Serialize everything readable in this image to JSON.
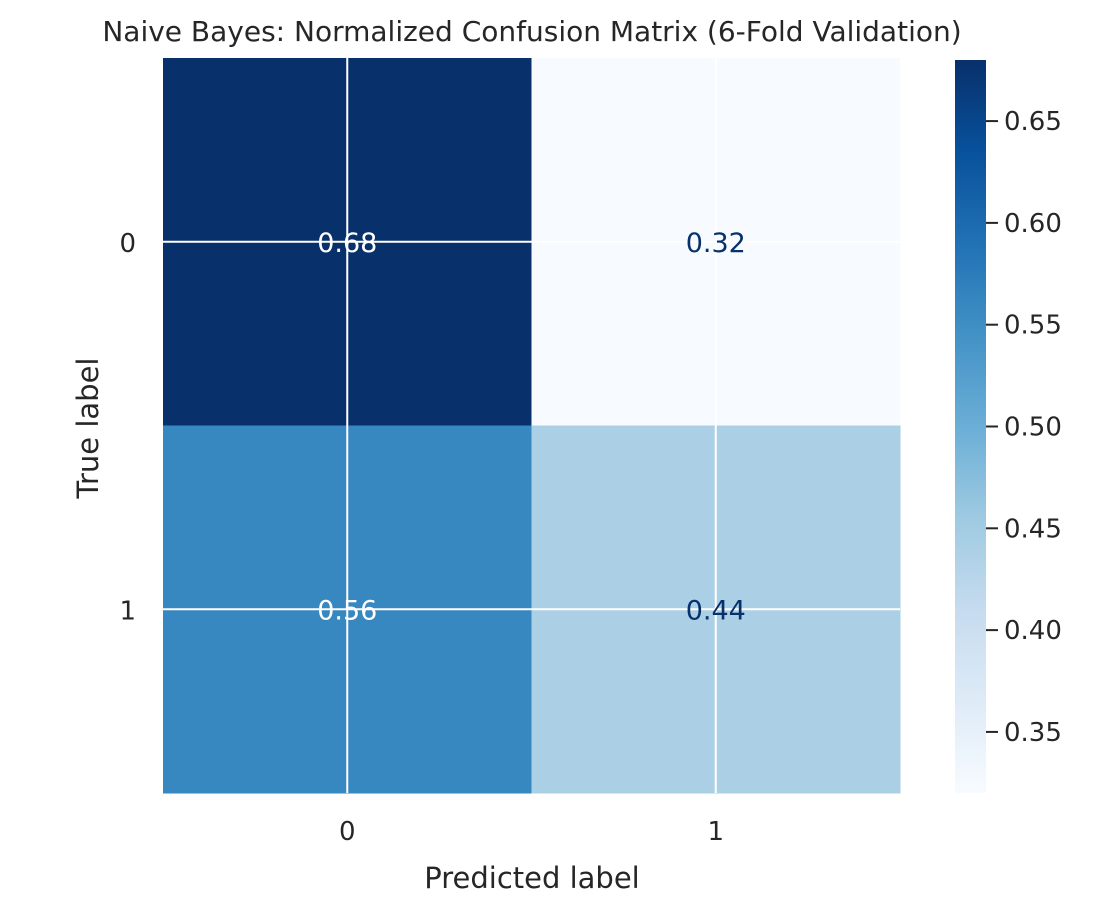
{
  "chart_data": {
    "type": "heatmap",
    "title": "Naive Bayes: Normalized Confusion Matrix (6-Fold Validation)",
    "xlabel": "Predicted label",
    "ylabel": "True label",
    "x_categories": [
      "0",
      "1"
    ],
    "y_categories": [
      "0",
      "1"
    ],
    "values": [
      [
        0.68,
        0.32
      ],
      [
        0.56,
        0.44
      ]
    ],
    "cell_labels": [
      [
        "0.68",
        "0.32"
      ],
      [
        "0.56",
        "0.44"
      ]
    ],
    "colormap": "Blues",
    "colorbar": {
      "range": [
        0.32,
        0.68
      ],
      "ticks": [
        0.35,
        0.4,
        0.45,
        0.5,
        0.55,
        0.6,
        0.65
      ],
      "tick_labels": [
        "0.35",
        "0.40",
        "0.45",
        "0.50",
        "0.55",
        "0.60",
        "0.65"
      ]
    },
    "grid": true
  }
}
